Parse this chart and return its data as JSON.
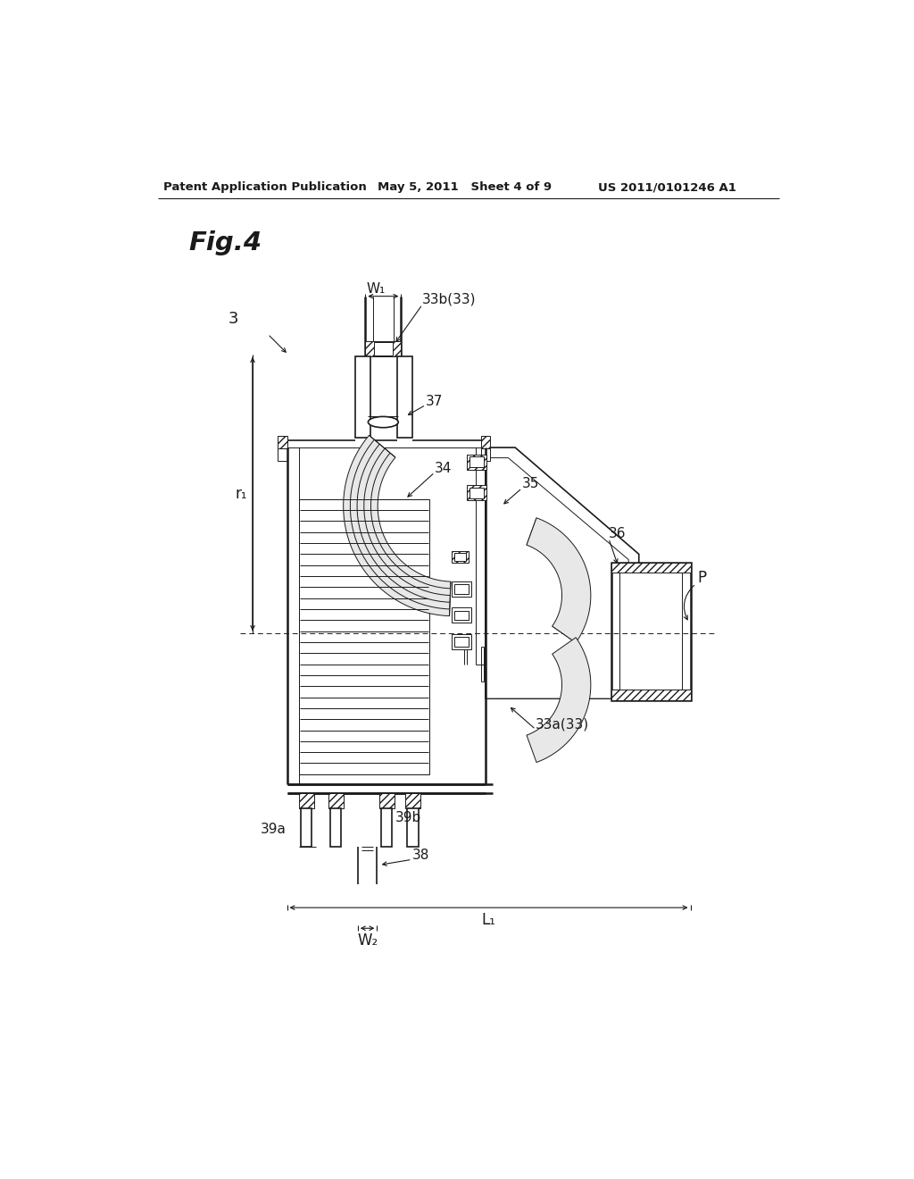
{
  "bg_color": "#ffffff",
  "line_color": "#1a1a1a",
  "header_left": "Patent Application Publication",
  "header_mid": "May 5, 2011   Sheet 4 of 9",
  "header_right": "US 2011/0101246 A1",
  "fig_label": "Fig.4"
}
